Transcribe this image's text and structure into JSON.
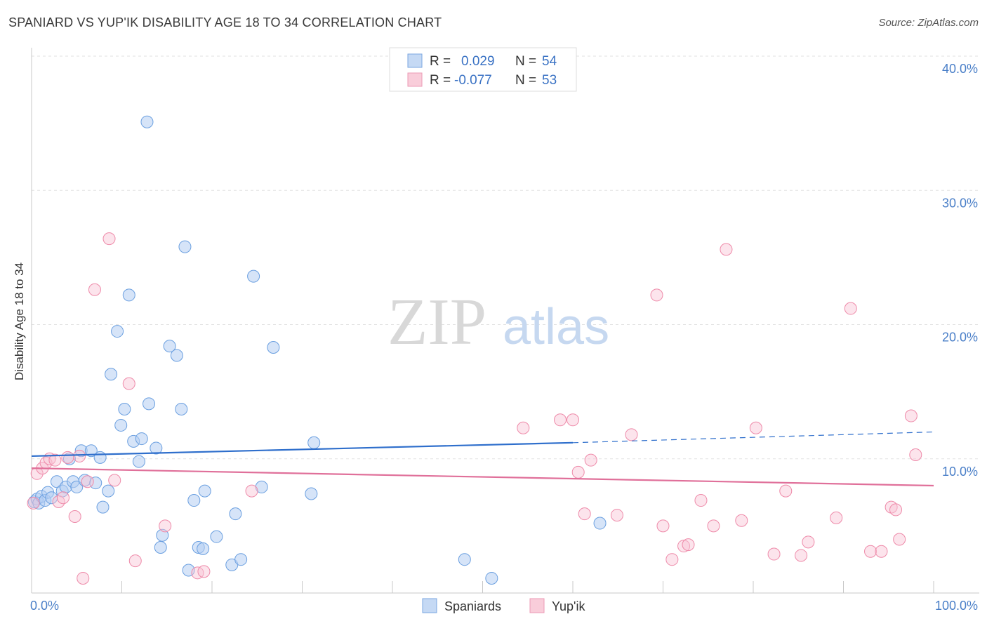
{
  "header": {
    "title": "SPANIARD VS YUP'IK DISABILITY AGE 18 TO 34 CORRELATION CHART",
    "source": "Source: ZipAtlas.com"
  },
  "watermark": {
    "zip": "ZIP",
    "atlas": "atlas"
  },
  "colors": {
    "blue": "#6a9fe0",
    "blue_line": "#2f6fcc",
    "pink": "#ee8aa9",
    "pink_line": "#e0709a"
  },
  "legend": {
    "r_label": "R =",
    "n_label": "N =",
    "rows": [
      {
        "r": "0.029",
        "n": "54"
      },
      {
        "r": "-0.077",
        "n": "53"
      }
    ]
  },
  "bottom_legend": [
    "Spaniards",
    "Yup'ik"
  ],
  "chart_data": {
    "type": "scatter",
    "title": "SPANIARD VS YUP'IK DISABILITY AGE 18 TO 34 CORRELATION CHART",
    "xlabel": "",
    "ylabel": "Disability Age 18 to 34",
    "xlim": [
      0,
      100
    ],
    "ylim": [
      0,
      40
    ],
    "x_tick_labels": [
      "0.0%",
      "100.0%"
    ],
    "y_ticks": [
      10,
      20,
      30,
      40
    ],
    "y_tick_labels": [
      "10.0%",
      "20.0%",
      "30.0%",
      "40.0%"
    ],
    "grid": true,
    "legend_position": "top-center",
    "series": [
      {
        "name": "Spaniards",
        "r": 0.029,
        "n": 54,
        "trend": {
          "x": [
            0,
            60
          ],
          "y": [
            10.2,
            11.2
          ],
          "dashed_to": [
            100,
            12.0
          ]
        },
        "points": [
          [
            0.3,
            6.8
          ],
          [
            0.6,
            7.0
          ],
          [
            0.8,
            6.7
          ],
          [
            1.1,
            7.2
          ],
          [
            1.5,
            6.9
          ],
          [
            1.8,
            7.5
          ],
          [
            2.2,
            7.1
          ],
          [
            2.8,
            8.3
          ],
          [
            3.4,
            7.6
          ],
          [
            3.8,
            7.9
          ],
          [
            4.2,
            10.0
          ],
          [
            4.6,
            8.3
          ],
          [
            5.0,
            7.9
          ],
          [
            5.5,
            10.6
          ],
          [
            5.9,
            8.4
          ],
          [
            6.6,
            10.6
          ],
          [
            7.1,
            8.2
          ],
          [
            7.6,
            10.1
          ],
          [
            7.9,
            6.4
          ],
          [
            8.5,
            7.6
          ],
          [
            8.8,
            16.3
          ],
          [
            9.5,
            19.5
          ],
          [
            9.9,
            12.5
          ],
          [
            10.3,
            13.7
          ],
          [
            10.8,
            22.2
          ],
          [
            11.3,
            11.3
          ],
          [
            11.9,
            9.8
          ],
          [
            12.2,
            11.5
          ],
          [
            12.8,
            35.1
          ],
          [
            13.0,
            14.1
          ],
          [
            13.8,
            10.8
          ],
          [
            14.3,
            3.4
          ],
          [
            14.5,
            4.3
          ],
          [
            15.3,
            18.4
          ],
          [
            16.1,
            17.7
          ],
          [
            16.6,
            13.7
          ],
          [
            17.0,
            25.8
          ],
          [
            17.4,
            1.7
          ],
          [
            18.0,
            6.9
          ],
          [
            18.5,
            3.4
          ],
          [
            19.0,
            3.3
          ],
          [
            19.2,
            7.6
          ],
          [
            20.5,
            4.2
          ],
          [
            22.2,
            2.1
          ],
          [
            22.6,
            5.9
          ],
          [
            23.2,
            2.5
          ],
          [
            24.6,
            23.6
          ],
          [
            25.5,
            7.9
          ],
          [
            26.8,
            18.3
          ],
          [
            31.0,
            7.4
          ],
          [
            31.3,
            11.2
          ],
          [
            48.0,
            2.5
          ],
          [
            51.0,
            1.1
          ],
          [
            63.0,
            5.2
          ]
        ]
      },
      {
        "name": "Yup'ik",
        "r": -0.077,
        "n": 53,
        "trend": {
          "x": [
            0,
            100
          ],
          "y": [
            9.3,
            8.0
          ]
        },
        "points": [
          [
            0.2,
            6.7
          ],
          [
            0.6,
            8.9
          ],
          [
            1.2,
            9.3
          ],
          [
            1.6,
            9.7
          ],
          [
            2.0,
            10.0
          ],
          [
            2.6,
            9.9
          ],
          [
            3.0,
            6.8
          ],
          [
            3.5,
            7.1
          ],
          [
            4.0,
            10.1
          ],
          [
            4.8,
            5.7
          ],
          [
            5.3,
            10.2
          ],
          [
            5.7,
            1.1
          ],
          [
            6.2,
            8.3
          ],
          [
            7.0,
            22.6
          ],
          [
            8.6,
            26.4
          ],
          [
            9.2,
            8.4
          ],
          [
            10.8,
            15.6
          ],
          [
            11.5,
            2.4
          ],
          [
            14.8,
            5.0
          ],
          [
            18.4,
            1.5
          ],
          [
            19.1,
            1.6
          ],
          [
            24.4,
            7.6
          ],
          [
            54.5,
            12.3
          ],
          [
            58.6,
            12.9
          ],
          [
            60.0,
            12.9
          ],
          [
            60.6,
            9.0
          ],
          [
            61.3,
            5.9
          ],
          [
            62.0,
            9.9
          ],
          [
            64.9,
            5.8
          ],
          [
            66.5,
            11.8
          ],
          [
            69.3,
            22.2
          ],
          [
            70.0,
            5.0
          ],
          [
            71.0,
            2.5
          ],
          [
            72.3,
            3.5
          ],
          [
            72.8,
            3.6
          ],
          [
            74.2,
            6.9
          ],
          [
            75.6,
            5.0
          ],
          [
            77.0,
            25.6
          ],
          [
            78.7,
            5.4
          ],
          [
            80.3,
            12.3
          ],
          [
            82.3,
            2.9
          ],
          [
            83.6,
            7.6
          ],
          [
            85.3,
            2.8
          ],
          [
            86.1,
            3.8
          ],
          [
            89.2,
            5.6
          ],
          [
            90.8,
            21.2
          ],
          [
            93.0,
            3.1
          ],
          [
            94.2,
            3.1
          ],
          [
            95.3,
            6.4
          ],
          [
            95.8,
            6.2
          ],
          [
            96.2,
            4.0
          ],
          [
            97.5,
            13.2
          ],
          [
            98.0,
            10.3
          ]
        ]
      }
    ]
  }
}
